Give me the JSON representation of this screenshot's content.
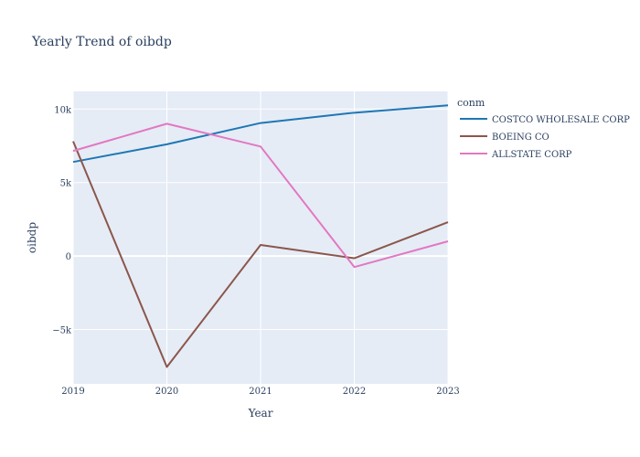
{
  "chart_data": {
    "type": "line",
    "title": "Yearly Trend of oibdp",
    "xlabel": "Year",
    "ylabel": "oibdp",
    "x": [
      2019,
      2020,
      2021,
      2022,
      2023
    ],
    "x_tick_labels": [
      "2019",
      "2020",
      "2021",
      "2022",
      "2023"
    ],
    "ylim": [
      -8700,
      11200
    ],
    "y_ticks": [
      -5000,
      0,
      5000,
      10000
    ],
    "y_tick_labels": [
      "−5k",
      "0",
      "5k",
      "10k"
    ],
    "grid": true,
    "legend": {
      "title": "conm",
      "placement": "top-right, outside plot"
    },
    "plot_bgcolor": "#e5ecf6",
    "series": [
      {
        "name": "COSTCO WHOLESALE CORP",
        "color": "#1f77b4",
        "values": [
          6400,
          7600,
          9050,
          9750,
          10250
        ]
      },
      {
        "name": "BOEING CO",
        "color": "#8c564b",
        "values": [
          7800,
          -7550,
          750,
          -150,
          2300
        ]
      },
      {
        "name": "ALLSTATE CORP",
        "color": "#e377c2",
        "values": [
          7150,
          9000,
          7450,
          -750,
          1000
        ]
      }
    ]
  }
}
